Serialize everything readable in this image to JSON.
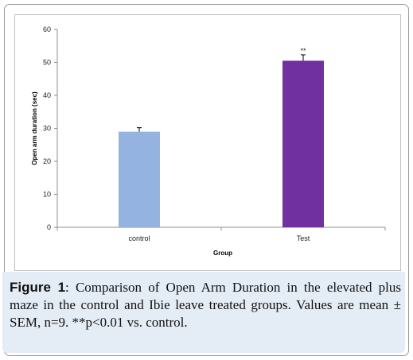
{
  "chart_data": {
    "type": "bar",
    "title": "",
    "xlabel": "Group",
    "ylabel": "Open arm duration (sec)",
    "categories": [
      "control",
      "Test"
    ],
    "values": [
      29,
      50.5
    ],
    "error": [
      1.2,
      1.8
    ],
    "annotations": [
      "",
      "**"
    ],
    "bar_colors": [
      "#95b3e0",
      "#7030a0"
    ],
    "ylim": [
      0,
      60
    ],
    "yticks": [
      0,
      10,
      20,
      30,
      40,
      50,
      60
    ],
    "grid": false,
    "legend": "none"
  },
  "caption": {
    "label": "Figure 1",
    "text": ": Comparison of Open Arm Duration in the elevated plus maze in the control and Ibie leave treated groups. Values are mean ± SEM, n=9. **p<0.01 vs. control."
  }
}
